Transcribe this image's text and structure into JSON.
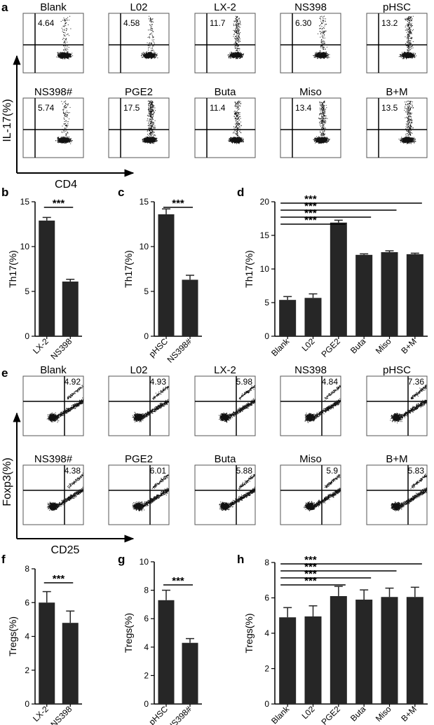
{
  "panel_letters": {
    "a": "a",
    "b": "b",
    "c": "c",
    "d": "d",
    "e": "e",
    "f": "f",
    "g": "g",
    "h": "h"
  },
  "significance": "***",
  "flow_a": {
    "ylabel": "IL-17(%)",
    "xlabel": "CD4",
    "panels": [
      {
        "title": "Blank",
        "value": "4.64"
      },
      {
        "title": "L02",
        "value": "4.58"
      },
      {
        "title": "LX-2",
        "value": "11.7"
      },
      {
        "title": "NS398",
        "value": "6.30"
      },
      {
        "title": "pHSC",
        "value": "13.2"
      },
      {
        "title": "NS398#",
        "value": "5.74"
      },
      {
        "title": "PGE2",
        "value": "17.5"
      },
      {
        "title": "Buta",
        "value": "11.4"
      },
      {
        "title": "Miso",
        "value": "13.4"
      },
      {
        "title": "B+M",
        "value": "13.5"
      }
    ]
  },
  "flow_e": {
    "ylabel": "Foxp3(%)",
    "xlabel": "CD25",
    "panels": [
      {
        "title": "Blank",
        "value": "4.92"
      },
      {
        "title": "L02",
        "value": "4.93"
      },
      {
        "title": "LX-2",
        "value": "5.98"
      },
      {
        "title": "NS398",
        "value": "4.84"
      },
      {
        "title": "pHSC",
        "value": "7.36"
      },
      {
        "title": "NS398#",
        "value": "4.38"
      },
      {
        "title": "PGE2",
        "value": "6.01"
      },
      {
        "title": "Buta",
        "value": "5.88"
      },
      {
        "title": "Miso",
        "value": "5.9"
      },
      {
        "title": "B+M",
        "value": "5.83"
      }
    ]
  },
  "chart_data": [
    {
      "panel": "b",
      "type": "bar",
      "ylabel": "Th17(%)",
      "categories": [
        "LX-2",
        "NS398"
      ],
      "values": [
        12.9,
        6.1
      ],
      "errors": [
        0.35,
        0.25
      ],
      "ylim": [
        0,
        15
      ],
      "yticks": [
        0,
        5,
        10,
        15
      ],
      "annotations": [
        {
          "from": "LX-2",
          "to": "NS398",
          "label": "***"
        }
      ]
    },
    {
      "panel": "c",
      "type": "bar",
      "ylabel": "Th17(%)",
      "categories": [
        "pHSC",
        "NS398#"
      ],
      "values": [
        13.6,
        6.3
      ],
      "errors": [
        0.6,
        0.5
      ],
      "ylim": [
        0,
        15
      ],
      "yticks": [
        0,
        5,
        10,
        15
      ],
      "annotations": [
        {
          "from": "pHSC",
          "to": "NS398#",
          "label": "***"
        }
      ]
    },
    {
      "panel": "d",
      "type": "bar",
      "ylabel": "Th17(%)",
      "categories": [
        "Blank",
        "L02",
        "PGE2",
        "Buta",
        "Miso",
        "B+M"
      ],
      "values": [
        5.4,
        5.7,
        16.9,
        12.1,
        12.5,
        12.2
      ],
      "errors": [
        0.5,
        0.6,
        0.35,
        0.15,
        0.2,
        0.15
      ],
      "ylim": [
        0,
        20
      ],
      "yticks": [
        0,
        5,
        10,
        15,
        20
      ],
      "annotations": [
        {
          "from": "Blank",
          "to": "PGE2",
          "label": "***"
        },
        {
          "from": "Blank",
          "to": "Buta",
          "label": "***"
        },
        {
          "from": "Blank",
          "to": "Miso",
          "label": "***"
        },
        {
          "from": "Blank",
          "to": "B+M",
          "label": "***"
        }
      ]
    },
    {
      "panel": "f",
      "type": "bar",
      "ylabel": "Tregs(%)",
      "categories": [
        "LX-2",
        "NS398"
      ],
      "values": [
        6.0,
        4.8
      ],
      "errors": [
        0.65,
        0.7
      ],
      "ylim": [
        0,
        8
      ],
      "yticks": [
        0,
        2,
        4,
        6,
        8
      ],
      "annotations": [
        {
          "from": "LX-2",
          "to": "NS398",
          "label": "***"
        }
      ]
    },
    {
      "panel": "g",
      "type": "bar",
      "ylabel": "Tregs(%)",
      "categories": [
        "pHSC",
        "NS398#"
      ],
      "values": [
        7.3,
        4.3
      ],
      "errors": [
        0.7,
        0.3
      ],
      "ylim": [
        0,
        10
      ],
      "yticks": [
        0,
        2,
        4,
        6,
        8,
        10
      ],
      "annotations": [
        {
          "from": "pHSC",
          "to": "NS398#",
          "label": "***"
        }
      ]
    },
    {
      "panel": "h",
      "type": "bar",
      "ylabel": "Tregs(%)",
      "categories": [
        "Blank",
        "L02",
        "PGE2",
        "Buta",
        "Miso",
        "B+M"
      ],
      "values": [
        4.9,
        4.95,
        6.1,
        5.9,
        6.05,
        6.05
      ],
      "errors": [
        0.55,
        0.6,
        0.55,
        0.55,
        0.5,
        0.55
      ],
      "ylim": [
        0,
        8
      ],
      "yticks": [
        0,
        2,
        4,
        6,
        8
      ],
      "annotations": [
        {
          "from": "Blank",
          "to": "PGE2",
          "label": "***"
        },
        {
          "from": "Blank",
          "to": "Buta",
          "label": "***"
        },
        {
          "from": "Blank",
          "to": "Miso",
          "label": "***"
        },
        {
          "from": "Blank",
          "to": "B+M",
          "label": "***"
        }
      ]
    }
  ]
}
